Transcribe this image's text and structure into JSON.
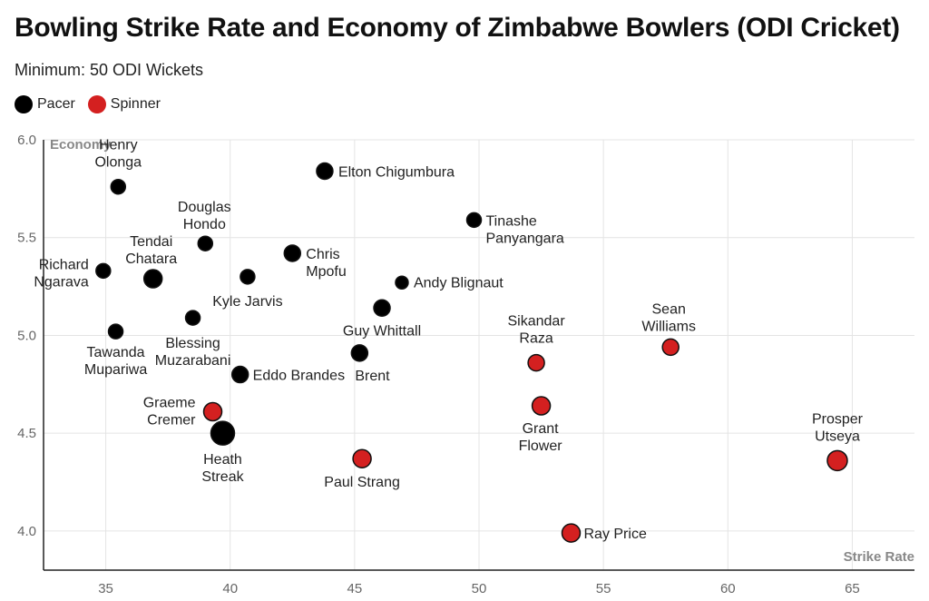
{
  "chart_data": {
    "type": "scatter",
    "title": "Bowling Strike Rate and Economy of Zimbabwe Bowlers (ODI Cricket)",
    "subtitle": "Minimum: 50 ODI Wickets",
    "xlabel": "Strike Rate",
    "ylabel": "Economy",
    "xlim": [
      32.5,
      67.5
    ],
    "ylim": [
      3.8,
      6.0
    ],
    "xticks": [
      35,
      40,
      45,
      50,
      55,
      60,
      65
    ],
    "yticks": [
      4.0,
      4.5,
      5.0,
      5.5,
      6.0
    ],
    "ytick_labels": [
      "4.0",
      "4.5",
      "5.0",
      "5.5",
      "6.0"
    ],
    "grid": true,
    "legend": "top-left",
    "series": [
      {
        "name": "Pacer",
        "color": "#000000",
        "points": [
          {
            "label": [
              "Henry",
              "Olonga"
            ],
            "x": 35.5,
            "y": 5.76
          },
          {
            "label": [
              "Elton Chigumbura"
            ],
            "x": 43.8,
            "y": 5.84
          },
          {
            "label": [
              "Douglas",
              "Hondo"
            ],
            "x": 39.0,
            "y": 5.47
          },
          {
            "label": [
              "Tinashe",
              "Panyangara"
            ],
            "x": 49.8,
            "y": 5.59
          },
          {
            "label": [
              "Tendai",
              "Chatara"
            ],
            "x": 36.9,
            "y": 5.29
          },
          {
            "label": [
              "Chris",
              "Mpofu"
            ],
            "x": 42.5,
            "y": 5.42
          },
          {
            "label": [
              "Richard",
              "Ngarava"
            ],
            "x": 34.9,
            "y": 5.33
          },
          {
            "label": [
              "Kyle Jarvis"
            ],
            "x": 40.7,
            "y": 5.3
          },
          {
            "label": [
              "Andy Blignaut"
            ],
            "x": 46.9,
            "y": 5.27
          },
          {
            "label": [
              "Guy Whittall"
            ],
            "x": 46.1,
            "y": 5.14
          },
          {
            "label": [
              "Blessing",
              "Muzarabani"
            ],
            "x": 38.5,
            "y": 5.09
          },
          {
            "label": [
              "Tawanda",
              "Mupariwa"
            ],
            "x": 35.4,
            "y": 5.02
          },
          {
            "label": [
              "Brent"
            ],
            "x": 45.2,
            "y": 4.91
          },
          {
            "label": [
              "Eddo Brandes"
            ],
            "x": 40.4,
            "y": 4.8
          },
          {
            "label": [
              "Heath",
              "Streak"
            ],
            "x": 39.7,
            "y": 4.5
          }
        ]
      },
      {
        "name": "Spinner",
        "color": "#d42020",
        "points": [
          {
            "label": [
              "Sikandar",
              "Raza"
            ],
            "x": 52.3,
            "y": 4.86
          },
          {
            "label": [
              "Sean",
              "Williams"
            ],
            "x": 57.7,
            "y": 4.94
          },
          {
            "label": [
              "Graeme",
              "Cremer"
            ],
            "x": 39.3,
            "y": 4.61
          },
          {
            "label": [
              "Grant",
              "Flower"
            ],
            "x": 52.5,
            "y": 4.64
          },
          {
            "label": [
              "Paul Strang"
            ],
            "x": 45.3,
            "y": 4.37
          },
          {
            "label": [
              "Prosper",
              "Utseya"
            ],
            "x": 64.4,
            "y": 4.36
          },
          {
            "label": [
              "Ray Price"
            ],
            "x": 53.7,
            "y": 3.99
          }
        ]
      }
    ]
  }
}
